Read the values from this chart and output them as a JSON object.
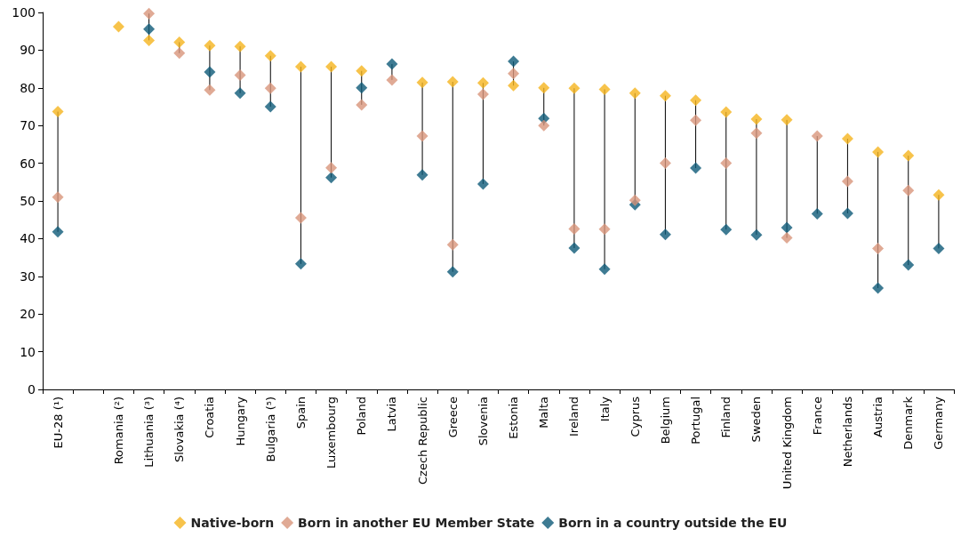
{
  "chart_data": {
    "type": "scatter",
    "categories": [
      "EU-28 (¹)",
      null,
      "Romania (²)",
      "Lithuania (³)",
      "Slovakia (⁴)",
      "Croatia",
      "Hungary",
      "Bulgaria (⁵)",
      "Spain",
      "Luxembourg",
      "Poland",
      "Latvia",
      "Czech Republic",
      "Greece",
      "Slovenia",
      "Estonia",
      "Malta",
      "Ireland",
      "Italy",
      "Cyprus",
      "Belgium",
      "Portugal",
      "Finland",
      "Sweden",
      "United Kingdom",
      "France",
      "Netherlands",
      "Austria",
      "Denmark",
      "Germany"
    ],
    "series": [
      {
        "name": "Native-born",
        "color": "#f5b41e",
        "values": [
          73.7,
          null,
          96.2,
          92.6,
          92.1,
          91.2,
          91.0,
          88.5,
          85.6,
          85.6,
          84.5,
          null,
          81.4,
          81.6,
          81.3,
          80.6,
          80.0,
          79.9,
          79.6,
          78.6,
          77.9,
          76.7,
          73.6,
          71.7,
          71.5,
          null,
          66.5,
          63.0,
          62.0,
          51.6
        ]
      },
      {
        "name": "Born in another EU Member State",
        "color": "#d8957a",
        "values": [
          51.0,
          null,
          null,
          99.7,
          89.2,
          79.4,
          83.4,
          79.9,
          45.5,
          58.8,
          75.5,
          82.1,
          67.2,
          38.4,
          78.3,
          83.8,
          70.0,
          42.6,
          42.5,
          50.2,
          60.0,
          71.4,
          60.0,
          68.0,
          40.2,
          67.2,
          55.2,
          37.4,
          52.8,
          null
        ]
      },
      {
        "name": "Born in a country outside the EU",
        "color": "#0e5a78",
        "values": [
          41.8,
          null,
          null,
          95.6,
          null,
          84.2,
          78.6,
          75.0,
          33.3,
          56.2,
          80.0,
          86.3,
          56.9,
          31.2,
          54.5,
          87.0,
          71.9,
          37.5,
          31.9,
          49.0,
          41.1,
          58.7,
          42.4,
          41.0,
          42.9,
          46.6,
          46.7,
          26.9,
          33.0,
          37.4
        ]
      }
    ],
    "ylim": [
      0,
      100
    ],
    "yticks": [
      0,
      10,
      20,
      30,
      40,
      50,
      60,
      70,
      80,
      90,
      100
    ],
    "grid": false,
    "legend": "bottom",
    "marker": "diamond"
  }
}
